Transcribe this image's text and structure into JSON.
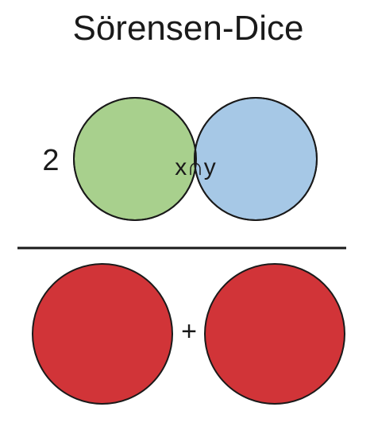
{
  "title": "Sörensen-Dice",
  "numerator": {
    "coefficient": "2",
    "intersection_label": "x∩y",
    "set_x_color": "#a8d08d",
    "set_y_color": "#a6c8e6",
    "intersection_color": "#cc0000"
  },
  "denominator": {
    "operator": "+",
    "set_color": "#d13438"
  },
  "fraction_bar_color": "#1a1a1a"
}
